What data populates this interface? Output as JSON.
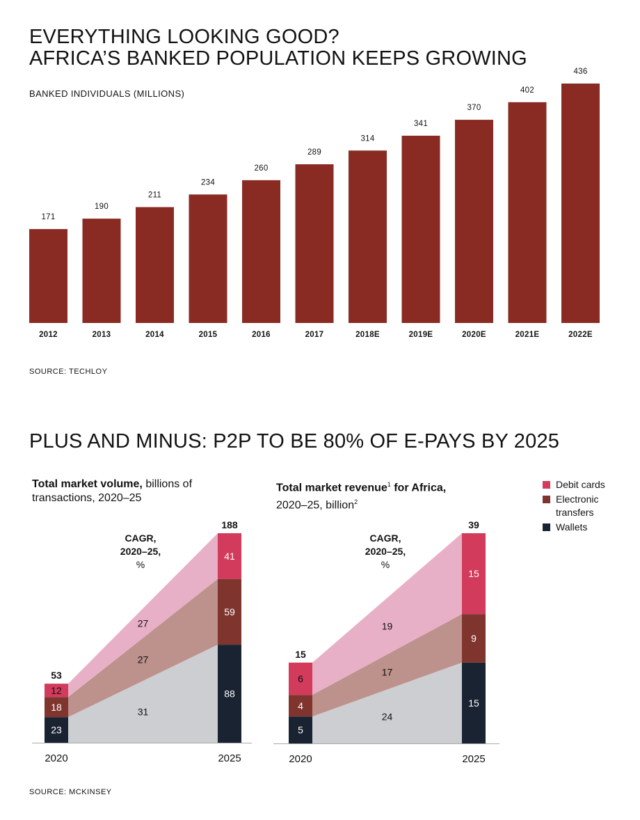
{
  "header": {
    "title_line1": "EVERYTHING LOOKING GOOD?",
    "title_line2": "AFRICA’S BANKED POPULATION KEEPS GROWING"
  },
  "section2": {
    "title": "PLUS AND MINUS: P2P TO BE 80% OF E-PAYS BY 2025"
  },
  "sources": {
    "top": "SOURCE: TECHLOY",
    "bottom": "SOURCE: MCKINSEY"
  },
  "colors": {
    "bar": "#8a2b23",
    "debit_cards": "#d23b5b",
    "electronic_transfers": "#7f352e",
    "wallets": "#1a2332",
    "debit_cards_area": "#e8b0c6",
    "electronic_transfers_area": "#bd918c",
    "wallets_area": "#ccced1",
    "axis": "#aaaaaa"
  },
  "legend": [
    {
      "key": "debit_cards",
      "label": "Debit cards"
    },
    {
      "key": "electronic_transfers",
      "label": "Electronic transfers"
    },
    {
      "key": "wallets",
      "label": "Wallets"
    }
  ],
  "chart_data": [
    {
      "type": "bar",
      "title": "BANKED INDIVIDUALS (MILLIONS)",
      "xlabel": "",
      "ylabel": "Banked individuals (millions)",
      "categories": [
        "2012",
        "2013",
        "2014",
        "2015",
        "2016",
        "2017",
        "2018E",
        "2019E",
        "2020E",
        "2021E",
        "2022E"
      ],
      "values": [
        171,
        190,
        211,
        234,
        260,
        289,
        314,
        341,
        370,
        402,
        436
      ],
      "ylim": [
        0,
        436
      ],
      "grid": false,
      "data_labels": true
    },
    {
      "type": "area",
      "stacked": true,
      "title_bold": "Total market volume,",
      "title_rest": "billions of transactions, 2020–25",
      "x": [
        "2020",
        "2025"
      ],
      "series": [
        {
          "key": "wallets",
          "name": "Wallets",
          "values": [
            23,
            88
          ],
          "cagr": 31
        },
        {
          "key": "electronic_transfers",
          "name": "Electronic transfers",
          "values": [
            18,
            59
          ],
          "cagr": 27
        },
        {
          "key": "debit_cards",
          "name": "Debit cards",
          "values": [
            12,
            41
          ],
          "cagr": 27
        }
      ],
      "totals": [
        53,
        188
      ],
      "ylim": [
        0,
        188
      ],
      "cagr_label_line1": "CAGR,",
      "cagr_label_line2": "2020–25,",
      "cagr_label_line3": "%"
    },
    {
      "type": "area",
      "stacked": true,
      "title_bold": "Total market revenue",
      "title_sup1": "1",
      "title_bold2": " for Africa,",
      "title_rest": "2020–25, billion",
      "title_sup2": "2",
      "x": [
        "2020",
        "2025"
      ],
      "series": [
        {
          "key": "wallets",
          "name": "Wallets",
          "values": [
            5,
            15
          ],
          "cagr": 24
        },
        {
          "key": "electronic_transfers",
          "name": "Electronic transfers",
          "values": [
            4,
            9
          ],
          "cagr": 17
        },
        {
          "key": "debit_cards",
          "name": "Debit cards",
          "values": [
            6,
            15
          ],
          "cagr": 19
        }
      ],
      "totals": [
        15,
        39
      ],
      "ylim": [
        0,
        39
      ],
      "cagr_label_line1": "CAGR,",
      "cagr_label_line2": "2020–25,",
      "cagr_label_line3": "%"
    }
  ]
}
